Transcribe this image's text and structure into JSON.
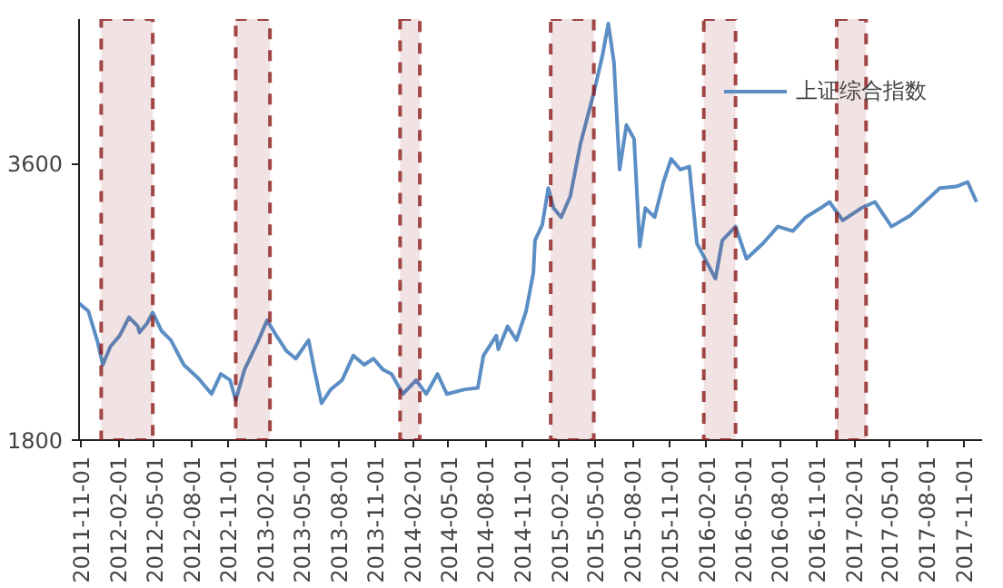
{
  "chart_data": {
    "type": "line",
    "x": [
      "2011-10-27",
      "2011-11-19",
      "2011-12-12",
      "2011-12-25",
      "2012-01-13",
      "2012-02-05",
      "2012-02-28",
      "2012-03-21",
      "2012-03-25",
      "2012-04-13",
      "2012-04-27",
      "2012-05-19",
      "2012-06-11",
      "2012-07-13",
      "2012-08-19",
      "2012-09-20",
      "2012-10-13",
      "2012-11-05",
      "2012-11-19",
      "2012-12-11",
      "2013-01-13",
      "2013-02-05",
      "2013-02-28",
      "2013-03-25",
      "2013-04-17",
      "2013-05-19",
      "2013-06-02",
      "2013-06-20",
      "2013-07-13",
      "2013-08-10",
      "2013-09-07",
      "2013-10-04",
      "2013-10-27",
      "2013-11-19",
      "2013-12-11",
      "2014-01-08",
      "2014-02-10",
      "2014-03-07",
      "2014-04-04",
      "2014-04-27",
      "2014-06-11",
      "2014-07-13",
      "2014-07-27",
      "2014-08-28",
      "2014-09-02",
      "2014-09-25",
      "2014-10-17",
      "2014-11-10",
      "2014-11-28",
      "2014-12-02",
      "2014-12-20",
      "2015-01-04",
      "2015-01-17",
      "2015-02-05",
      "2015-02-28",
      "2015-03-25",
      "2015-04-27",
      "2015-05-19",
      "2015-06-02",
      "2015-06-16",
      "2015-06-30",
      "2015-07-17",
      "2015-08-05",
      "2015-08-19",
      "2015-09-02",
      "2015-09-25",
      "2015-10-17",
      "2015-11-05",
      "2015-11-28",
      "2015-12-20",
      "2016-01-08",
      "2016-02-05",
      "2016-02-23",
      "2016-03-11",
      "2016-04-13",
      "2016-05-10",
      "2016-06-20",
      "2016-07-27",
      "2016-09-02",
      "2016-10-04",
      "2016-11-10",
      "2016-12-02",
      "2017-01-04",
      "2017-02-19",
      "2017-03-25",
      "2017-05-05",
      "2017-06-20",
      "2017-07-27",
      "2017-09-02",
      "2017-10-13",
      "2017-11-10",
      "2017-12-02"
    ],
    "series": [
      {
        "name": "上证综合指数",
        "color": "#5b8ec4",
        "values": [
          2690,
          2640,
          2440,
          2290,
          2410,
          2480,
          2600,
          2540,
          2500,
          2560,
          2630,
          2510,
          2450,
          2290,
          2200,
          2100,
          2230,
          2190,
          2060,
          2260,
          2440,
          2580,
          2480,
          2380,
          2330,
          2450,
          2260,
          2040,
          2130,
          2190,
          2350,
          2290,
          2330,
          2260,
          2230,
          2100,
          2190,
          2100,
          2230,
          2100,
          2130,
          2140,
          2350,
          2480,
          2390,
          2540,
          2450,
          2640,
          2890,
          3100,
          3200,
          3440,
          3310,
          3250,
          3390,
          3730,
          4060,
          4310,
          4510,
          4260,
          3560,
          3850,
          3760,
          3060,
          3310,
          3250,
          3480,
          3630,
          3560,
          3580,
          3080,
          2940,
          2850,
          3100,
          3190,
          2980,
          3080,
          3190,
          3160,
          3250,
          3310,
          3350,
          3230,
          3310,
          3350,
          3190,
          3260,
          3350,
          3440,
          3450,
          3480,
          3350
        ]
      }
    ],
    "xlim": [
      "2011-10-27",
      "2017-12-16"
    ],
    "xticks": [
      "2011-11-01",
      "2012-02-01",
      "2012-05-01",
      "2012-08-01",
      "2012-11-01",
      "2013-02-01",
      "2013-05-01",
      "2013-08-01",
      "2013-11-01",
      "2014-02-01",
      "2014-05-01",
      "2014-08-01",
      "2014-11-01",
      "2015-02-01",
      "2015-05-01",
      "2015-08-01",
      "2015-11-01",
      "2016-02-01",
      "2016-05-01",
      "2016-08-01",
      "2016-11-01",
      "2017-02-01",
      "2017-05-01",
      "2017-08-01",
      "2017-11-01"
    ],
    "ylim": [
      1800,
      4540
    ],
    "yticks": [
      1800,
      3600
    ],
    "bands": [
      {
        "axis": "x",
        "from": "2011-12-21",
        "to": "2012-04-27",
        "color": "#8b1a1a"
      },
      {
        "axis": "x",
        "from": "2012-11-19",
        "to": "2013-02-12",
        "color": "#8b1a1a"
      },
      {
        "axis": "x",
        "from": "2014-01-01",
        "to": "2014-02-19",
        "color": "#8b1a1a"
      },
      {
        "axis": "x",
        "from": "2015-01-10",
        "to": "2015-04-27",
        "color": "#8b1a1a"
      },
      {
        "axis": "x",
        "from": "2016-01-25",
        "to": "2016-04-13",
        "color": "#8b1a1a"
      },
      {
        "axis": "x",
        "from": "2016-12-20",
        "to": "2017-03-03",
        "color": "#8b1a1a"
      }
    ],
    "grid": false,
    "legend": "top right",
    "line_style": "solid",
    "marker": "none"
  }
}
